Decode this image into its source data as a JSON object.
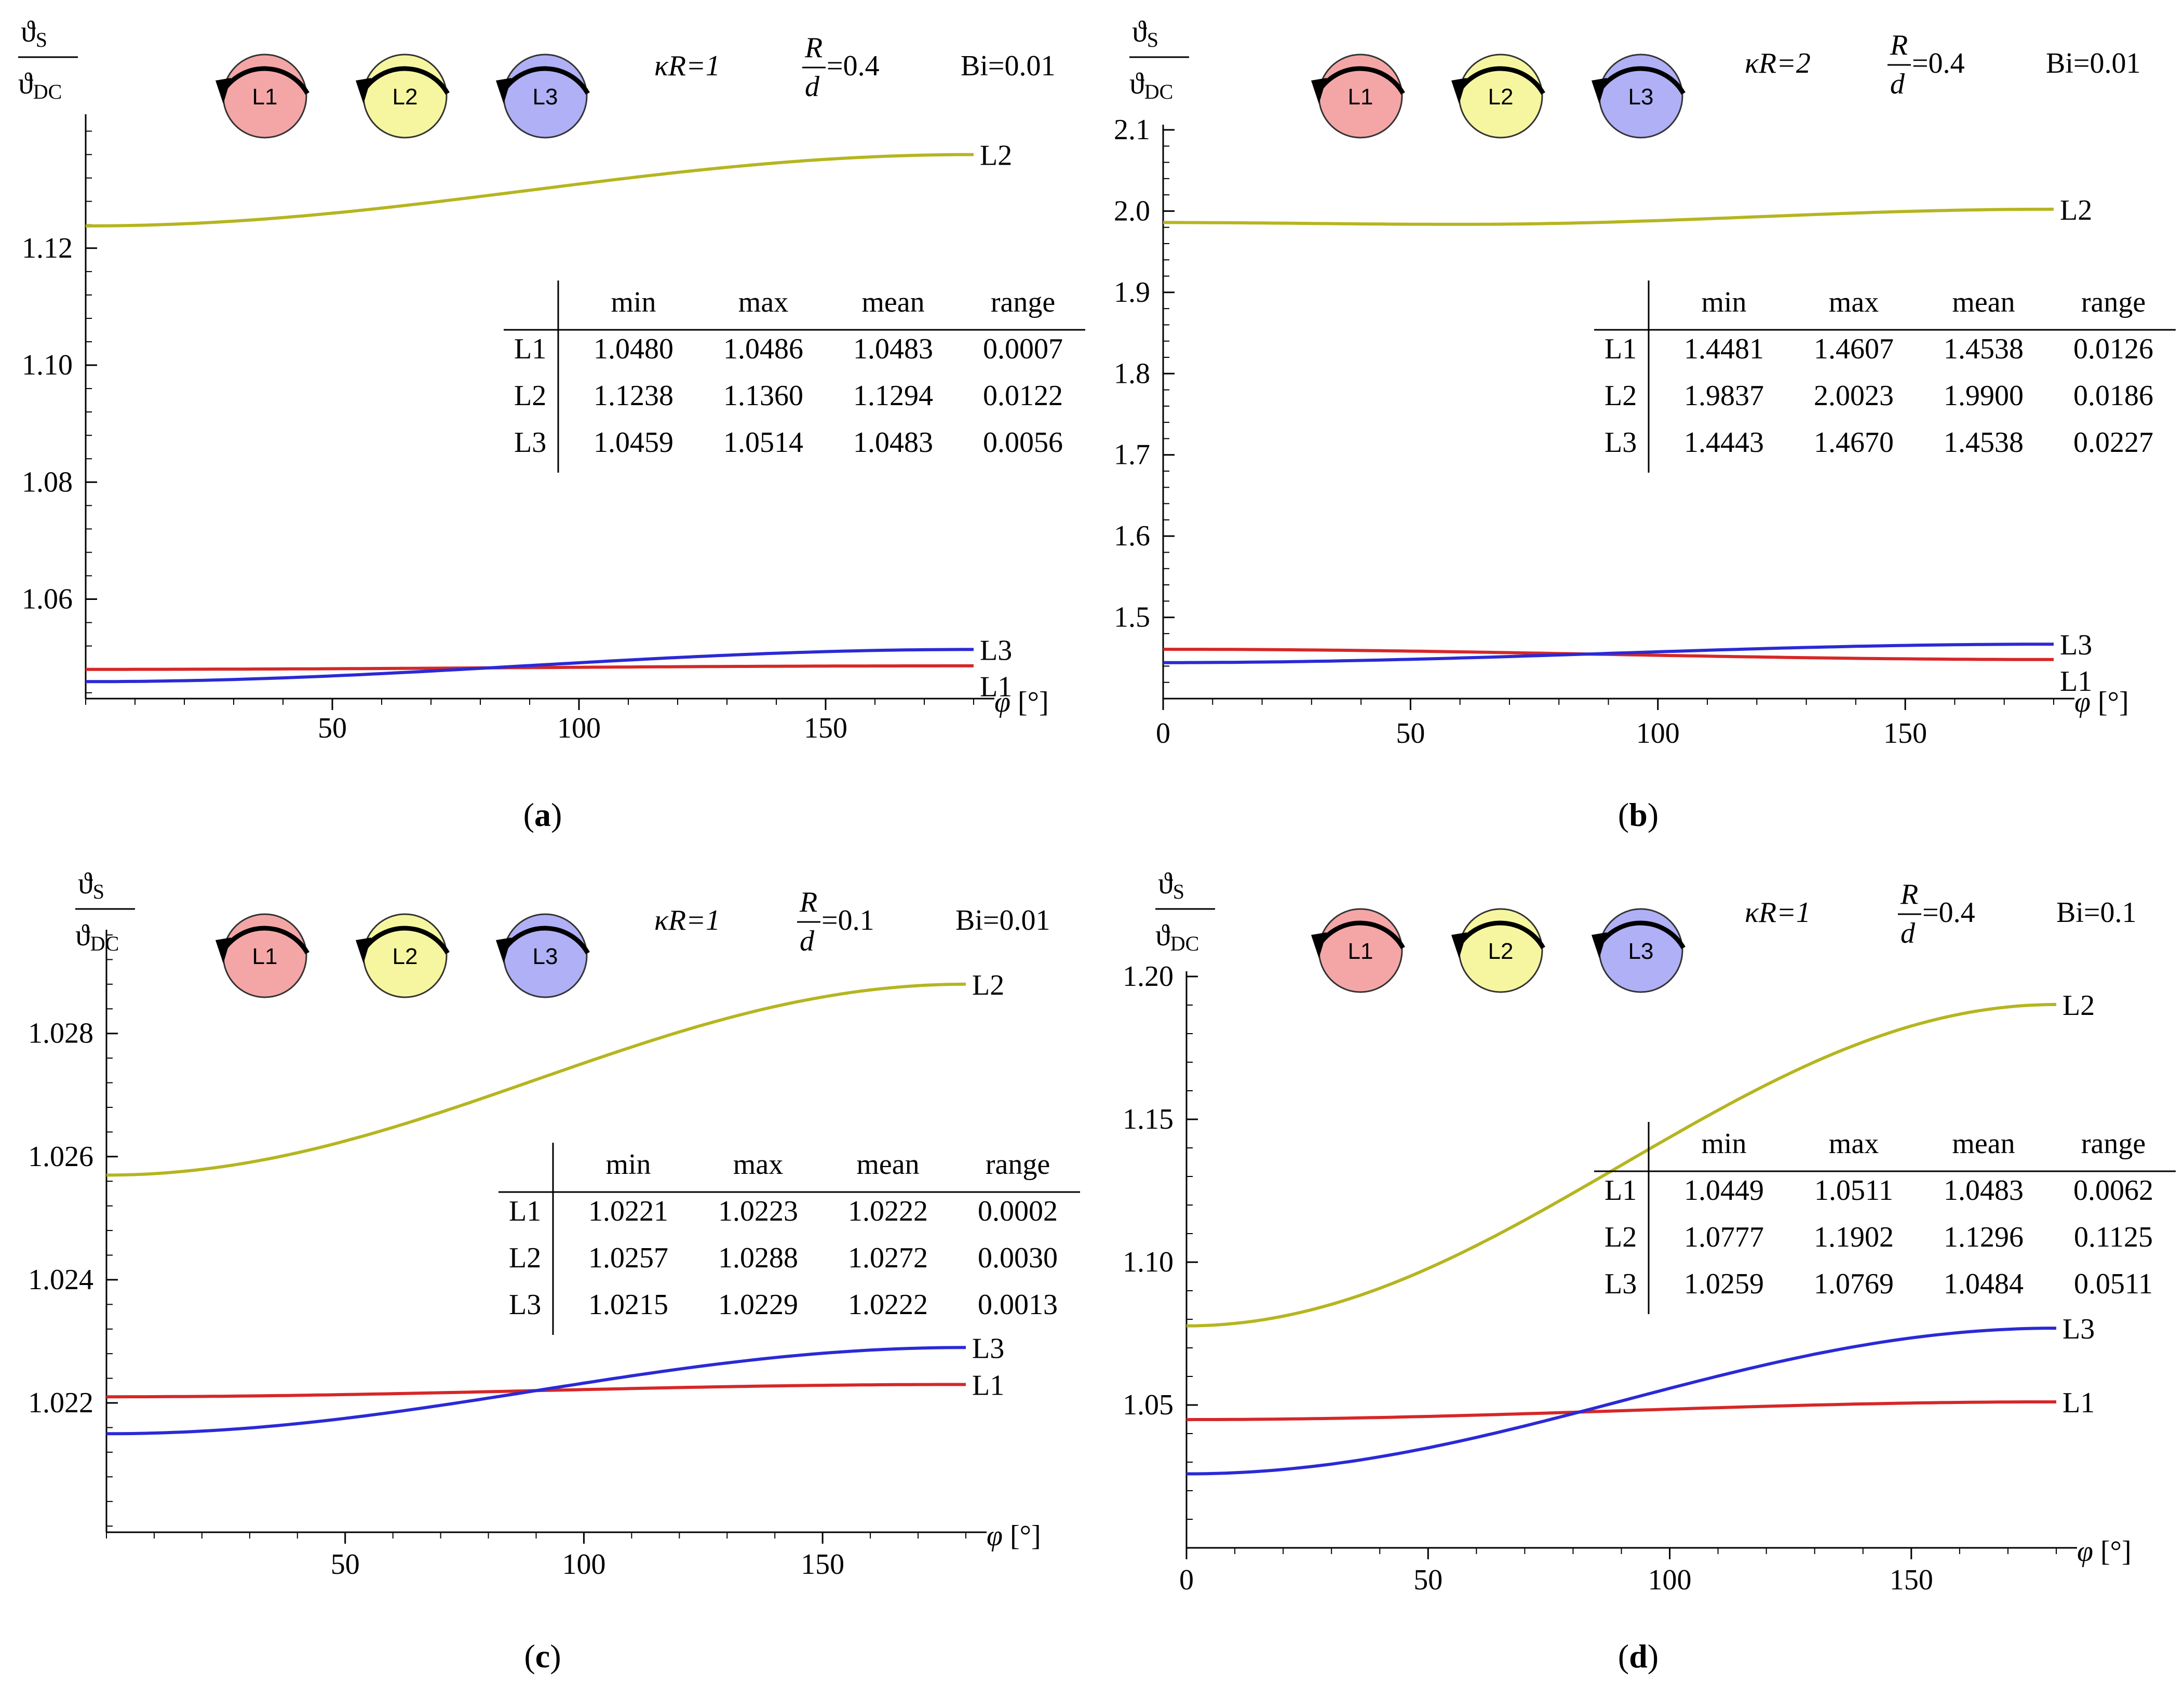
{
  "chart_data": [
    {
      "panel": "a",
      "panel_label": "a",
      "type": "line",
      "params": {
        "kR": "κR=1",
        "Rd_value": "=0.4",
        "Bi": "Bi=0.01"
      },
      "ylim": [
        1.043,
        1.142
      ],
      "yticks": [
        1.06,
        1.08,
        1.1,
        1.12
      ],
      "ytick_labels": [
        "1.06",
        "1.08",
        "1.10",
        "1.12"
      ],
      "xlim": [
        0,
        180
      ],
      "xticks": [
        50,
        100,
        150
      ],
      "xtick_labels": [
        "50",
        "100",
        "150"
      ],
      "series": [
        {
          "name": "L1",
          "color": "#d62728",
          "min": 1.048,
          "max": 1.0486,
          "phi_min": 0,
          "direction": 1
        },
        {
          "name": "L2",
          "color": "#b5b520",
          "min": 1.1238,
          "max": 1.136,
          "phi_min": 0,
          "direction": 1
        },
        {
          "name": "L3",
          "color": "#2a2ad6",
          "min": 1.0459,
          "max": 1.0514,
          "phi_min": 0,
          "direction": 1
        }
      ],
      "table": {
        "headers": [
          "min",
          "max",
          "mean",
          "range"
        ],
        "rows": [
          [
            "L1",
            "1.0480",
            "1.0486",
            "1.0483",
            "0.0007"
          ],
          [
            "L2",
            "1.1238",
            "1.1360",
            "1.1294",
            "0.0122"
          ],
          [
            "L3",
            "1.0459",
            "1.0514",
            "1.0483",
            "0.0056"
          ]
        ]
      }
    },
    {
      "panel": "b",
      "panel_label": "b",
      "type": "line",
      "params": {
        "kR": "κR=2",
        "Rd_value": "=0.4",
        "Bi": "Bi=0.01"
      },
      "ylim": [
        1.4,
        2.1
      ],
      "yticks": [
        1.5,
        1.6,
        1.7,
        1.8,
        1.9,
        2.0,
        2.1
      ],
      "ytick_labels": [
        "1.5",
        "1.6",
        "1.7",
        "1.8",
        "1.9",
        "2.0",
        "2.1"
      ],
      "xlim": [
        0,
        180
      ],
      "xticks": [
        0,
        50,
        100,
        150
      ],
      "xtick_labels": [
        "0",
        "50",
        "100",
        "150"
      ],
      "series": [
        {
          "name": "L1",
          "color": "#d62728",
          "min": 1.4481,
          "max": 1.4607,
          "phi_min": 180,
          "direction": -1
        },
        {
          "name": "L2",
          "color": "#b5b520",
          "min": 1.9837,
          "max": 2.0023,
          "phi_min": 60,
          "direction": 1
        },
        {
          "name": "L3",
          "color": "#2a2ad6",
          "min": 1.4443,
          "max": 1.467,
          "phi_min": 0,
          "direction": 1
        }
      ],
      "table": {
        "headers": [
          "min",
          "max",
          "mean",
          "range"
        ],
        "rows": [
          [
            "L1",
            "1.4481",
            "1.4607",
            "1.4538",
            "0.0126"
          ],
          [
            "L2",
            "1.9837",
            "2.0023",
            "1.9900",
            "0.0186"
          ],
          [
            "L3",
            "1.4443",
            "1.4670",
            "1.4538",
            "0.0227"
          ]
        ]
      }
    },
    {
      "panel": "c",
      "panel_label": "c",
      "type": "line",
      "params": {
        "kR": "κR=1",
        "Rd_value": "=0.1",
        "Bi": "Bi=0.01"
      },
      "ylim": [
        1.0199,
        1.0296
      ],
      "yticks": [
        1.022,
        1.024,
        1.026,
        1.028
      ],
      "ytick_labels": [
        "1.022",
        "1.024",
        "1.026",
        "1.028"
      ],
      "xlim": [
        0,
        180
      ],
      "xticks": [
        50,
        100,
        150
      ],
      "xtick_labels": [
        "50",
        "100",
        "150"
      ],
      "series": [
        {
          "name": "L1",
          "color": "#d62728",
          "min": 1.0221,
          "max": 1.0223,
          "phi_min": 0,
          "direction": 1
        },
        {
          "name": "L2",
          "color": "#b5b520",
          "min": 1.0257,
          "max": 1.0288,
          "phi_min": 0,
          "direction": 1
        },
        {
          "name": "L3",
          "color": "#2a2ad6",
          "min": 1.0215,
          "max": 1.0229,
          "phi_min": 0,
          "direction": 1
        }
      ],
      "table": {
        "headers": [
          "min",
          "max",
          "mean",
          "range"
        ],
        "rows": [
          [
            "L1",
            "1.0221",
            "1.0223",
            "1.0222",
            "0.0002"
          ],
          [
            "L2",
            "1.0257",
            "1.0288",
            "1.0272",
            "0.0030"
          ],
          [
            "L3",
            "1.0215",
            "1.0229",
            "1.0222",
            "0.0013"
          ]
        ]
      }
    },
    {
      "panel": "d",
      "panel_label": "d",
      "type": "line",
      "params": {
        "kR": "κR=1",
        "Rd_value": "=0.4",
        "Bi": "Bi=0.1"
      },
      "ylim": [
        1.0,
        1.2
      ],
      "yticks": [
        1.05,
        1.1,
        1.15,
        1.2
      ],
      "ytick_labels": [
        "1.05",
        "1.10",
        "1.15",
        "1.20"
      ],
      "xlim": [
        0,
        180
      ],
      "xticks": [
        0,
        50,
        100,
        150
      ],
      "xtick_labels": [
        "0",
        "50",
        "100",
        "150"
      ],
      "series": [
        {
          "name": "L1",
          "color": "#d62728",
          "min": 1.0449,
          "max": 1.0511,
          "phi_min": 0,
          "direction": 1
        },
        {
          "name": "L2",
          "color": "#b5b520",
          "min": 1.0777,
          "max": 1.1902,
          "phi_min": 0,
          "direction": 1
        },
        {
          "name": "L3",
          "color": "#2a2ad6",
          "min": 1.0259,
          "max": 1.0769,
          "phi_min": 0,
          "direction": 1
        }
      ],
      "table": {
        "headers": [
          "min",
          "max",
          "mean",
          "range"
        ],
        "rows": [
          [
            "L1",
            "1.0449",
            "1.0511",
            "1.0483",
            "0.0062"
          ],
          [
            "L2",
            "1.0777",
            "1.1902",
            "1.1296",
            "0.1125"
          ],
          [
            "L3",
            "1.0259",
            "1.0769",
            "1.0484",
            "0.0511"
          ]
        ]
      }
    }
  ],
  "labels": {
    "x_axis_symbol": "φ",
    "x_axis_unit": "[°]",
    "y_num_main": "ϑ",
    "y_num_sub": "S",
    "y_den_main": "ϑ",
    "y_den_sub": "DC",
    "Rd_num": "R",
    "Rd_den": "d"
  },
  "conductors": [
    {
      "name": "L1",
      "color": "#f4a6a6"
    },
    {
      "name": "L2",
      "color": "#f6f6a0"
    },
    {
      "name": "L3",
      "color": "#b0b0f6"
    }
  ]
}
